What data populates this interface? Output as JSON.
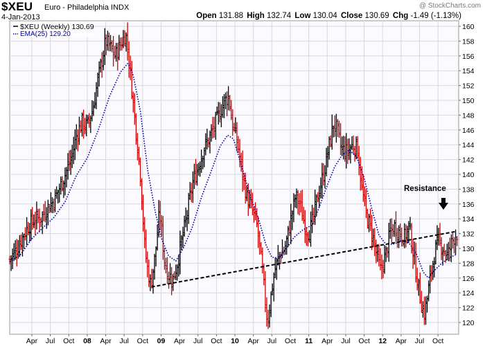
{
  "header": {
    "symbol": "$XEU",
    "name": "Euro - Philadelphia",
    "exchange": "INDX",
    "date": "4-Jan-2013",
    "brand": "@ StockCharts.com",
    "open_label": "Open",
    "open": "131.88",
    "high_label": "High",
    "high": "132.74",
    "low_label": "Low",
    "low": "130.04",
    "close_label": "Close",
    "close": "130.69",
    "chg_label": "Chg",
    "chg": "-1.49 (-1.13%)"
  },
  "legend": {
    "price_label": "$XEU (Weekly) 130.69",
    "ema_label": "EMA(25) 129.20"
  },
  "annotation": {
    "text": "Resistance"
  },
  "colors": {
    "up_bar": "#000000",
    "down_bar": "#cc0000",
    "ema": "#0000aa",
    "trendline": "#000000",
    "grid": "#d8d8e0"
  },
  "chart_data": {
    "type": "line",
    "title": "$XEU Euro - Philadelphia INDX",
    "series": [
      {
        "name": "$XEU (Weekly)",
        "style": "ohlc-bars"
      },
      {
        "name": "EMA(25)",
        "style": "dotted"
      }
    ],
    "ylim": [
      119,
      161
    ],
    "y_ticks": [
      120,
      122,
      124,
      126,
      128,
      130,
      132,
      134,
      136,
      138,
      140,
      142,
      144,
      146,
      148,
      150,
      152,
      154,
      156,
      158,
      160
    ],
    "x_ticks": [
      {
        "label": "Apr",
        "t": 2007.25
      },
      {
        "label": "Jul",
        "t": 2007.5
      },
      {
        "label": "Oct",
        "t": 2007.75
      },
      {
        "label": "08",
        "t": 2008.0,
        "bold": true
      },
      {
        "label": "Apr",
        "t": 2008.25
      },
      {
        "label": "Jul",
        "t": 2008.5
      },
      {
        "label": "Oct",
        "t": 2008.75
      },
      {
        "label": "09",
        "t": 2009.0,
        "bold": true
      },
      {
        "label": "Apr",
        "t": 2009.25
      },
      {
        "label": "Jul",
        "t": 2009.5
      },
      {
        "label": "Oct",
        "t": 2009.75
      },
      {
        "label": "10",
        "t": 2010.0,
        "bold": true
      },
      {
        "label": "Apr",
        "t": 2010.25
      },
      {
        "label": "Jul",
        "t": 2010.5
      },
      {
        "label": "Oct",
        "t": 2010.75
      },
      {
        "label": "11",
        "t": 2011.0,
        "bold": true
      },
      {
        "label": "Apr",
        "t": 2011.25
      },
      {
        "label": "Jul",
        "t": 2011.5
      },
      {
        "label": "Oct",
        "t": 2011.75
      },
      {
        "label": "12",
        "t": 2012.0,
        "bold": true
      },
      {
        "label": "Apr",
        "t": 2012.25
      },
      {
        "label": "Jul",
        "t": 2012.5
      },
      {
        "label": "Oct",
        "t": 2012.75
      }
    ],
    "x_range": [
      2006.95,
      2013.03
    ],
    "price_path": [
      [
        2006.95,
        128.5
      ],
      [
        2007.05,
        130
      ],
      [
        2007.12,
        131.5
      ],
      [
        2007.2,
        133
      ],
      [
        2007.3,
        134
      ],
      [
        2007.38,
        134.2
      ],
      [
        2007.46,
        135.5
      ],
      [
        2007.55,
        136.5
      ],
      [
        2007.62,
        138
      ],
      [
        2007.7,
        140
      ],
      [
        2007.78,
        142
      ],
      [
        2007.86,
        145.5
      ],
      [
        2007.93,
        147
      ],
      [
        2008.0,
        146.5
      ],
      [
        2008.08,
        149
      ],
      [
        2008.13,
        152
      ],
      [
        2008.2,
        155.5
      ],
      [
        2008.25,
        158
      ],
      [
        2008.32,
        157
      ],
      [
        2008.38,
        156
      ],
      [
        2008.45,
        157.5
      ],
      [
        2008.52,
        159
      ],
      [
        2008.56,
        156
      ],
      [
        2008.62,
        150
      ],
      [
        2008.67,
        145
      ],
      [
        2008.72,
        140
      ],
      [
        2008.78,
        130
      ],
      [
        2008.82,
        127
      ],
      [
        2008.86,
        125
      ],
      [
        2008.92,
        129
      ],
      [
        2008.98,
        135
      ],
      [
        2009.05,
        128
      ],
      [
        2009.1,
        126.5
      ],
      [
        2009.16,
        125.8
      ],
      [
        2009.22,
        128
      ],
      [
        2009.28,
        131
      ],
      [
        2009.36,
        135
      ],
      [
        2009.42,
        138.5
      ],
      [
        2009.5,
        141
      ],
      [
        2009.58,
        143.5
      ],
      [
        2009.66,
        145
      ],
      [
        2009.74,
        147
      ],
      [
        2009.8,
        148.5
      ],
      [
        2009.86,
        150
      ],
      [
        2009.92,
        150.5
      ],
      [
        2009.96,
        147
      ],
      [
        2010.04,
        144
      ],
      [
        2010.1,
        140
      ],
      [
        2010.16,
        137
      ],
      [
        2010.24,
        135
      ],
      [
        2010.3,
        133
      ],
      [
        2010.36,
        128
      ],
      [
        2010.4,
        124
      ],
      [
        2010.44,
        120
      ],
      [
        2010.48,
        123
      ],
      [
        2010.54,
        127
      ],
      [
        2010.6,
        129
      ],
      [
        2010.68,
        130
      ],
      [
        2010.76,
        134
      ],
      [
        2010.82,
        137
      ],
      [
        2010.88,
        136
      ],
      [
        2010.95,
        133
      ],
      [
        2011.0,
        132
      ],
      [
        2011.06,
        134
      ],
      [
        2011.12,
        137
      ],
      [
        2011.2,
        140
      ],
      [
        2011.28,
        144
      ],
      [
        2011.34,
        147
      ],
      [
        2011.38,
        146
      ],
      [
        2011.44,
        143.5
      ],
      [
        2011.52,
        143
      ],
      [
        2011.6,
        144
      ],
      [
        2011.66,
        143.5
      ],
      [
        2011.72,
        138
      ],
      [
        2011.78,
        134.5
      ],
      [
        2011.86,
        132
      ],
      [
        2011.92,
        129
      ],
      [
        2011.97,
        127
      ],
      [
        2012.04,
        129
      ],
      [
        2012.1,
        132
      ],
      [
        2012.16,
        133
      ],
      [
        2012.24,
        132
      ],
      [
        2012.3,
        131.5
      ],
      [
        2012.36,
        133
      ],
      [
        2012.42,
        129
      ],
      [
        2012.48,
        125
      ],
      [
        2012.52,
        123
      ],
      [
        2012.56,
        121
      ],
      [
        2012.6,
        123
      ],
      [
        2012.66,
        127
      ],
      [
        2012.72,
        130
      ],
      [
        2012.76,
        131
      ],
      [
        2012.82,
        130
      ],
      [
        2012.88,
        129
      ],
      [
        2012.94,
        131
      ],
      [
        2013.0,
        132
      ]
    ],
    "ema_path": [
      [
        2006.95,
        128.2
      ],
      [
        2007.1,
        129.2
      ],
      [
        2007.25,
        131.3
      ],
      [
        2007.4,
        132.8
      ],
      [
        2007.55,
        134.2
      ],
      [
        2007.7,
        136.3
      ],
      [
        2007.85,
        139.8
      ],
      [
        2008.0,
        142.2
      ],
      [
        2008.15,
        146.0
      ],
      [
        2008.3,
        150.5
      ],
      [
        2008.45,
        153.8
      ],
      [
        2008.55,
        155.0
      ],
      [
        2008.62,
        153.5
      ],
      [
        2008.72,
        148.5
      ],
      [
        2008.82,
        140.5
      ],
      [
        2008.92,
        135.0
      ],
      [
        2009.0,
        131.5
      ],
      [
        2009.1,
        129.0
      ],
      [
        2009.2,
        128.3
      ],
      [
        2009.3,
        130.0
      ],
      [
        2009.42,
        132.8
      ],
      [
        2009.55,
        137.0
      ],
      [
        2009.7,
        141.0
      ],
      [
        2009.8,
        143.8
      ],
      [
        2009.9,
        145.3
      ],
      [
        2009.98,
        144.8
      ],
      [
        2010.1,
        140.8
      ],
      [
        2010.2,
        137.3
      ],
      [
        2010.32,
        134.0
      ],
      [
        2010.42,
        130.5
      ],
      [
        2010.5,
        128.8
      ],
      [
        2010.6,
        128.7
      ],
      [
        2010.7,
        130.0
      ],
      [
        2010.8,
        131.5
      ],
      [
        2010.92,
        132.5
      ],
      [
        2011.05,
        133.2
      ],
      [
        2011.15,
        135.8
      ],
      [
        2011.25,
        138.5
      ],
      [
        2011.35,
        141.0
      ],
      [
        2011.45,
        142.6
      ],
      [
        2011.55,
        143.3
      ],
      [
        2011.65,
        142.3
      ],
      [
        2011.75,
        139.5
      ],
      [
        2011.85,
        135.5
      ],
      [
        2011.95,
        131.8
      ],
      [
        2012.05,
        130.5
      ],
      [
        2012.15,
        130.6
      ],
      [
        2012.25,
        131.0
      ],
      [
        2012.35,
        130.8
      ],
      [
        2012.45,
        129.5
      ],
      [
        2012.55,
        126.8
      ],
      [
        2012.62,
        126.0
      ],
      [
        2012.7,
        127.0
      ],
      [
        2012.8,
        128.0
      ],
      [
        2012.9,
        128.7
      ],
      [
        2013.0,
        129.2
      ]
    ],
    "trendline": [
      [
        2008.87,
        124.8
      ],
      [
        2013.0,
        132.3
      ]
    ],
    "annotation_point": [
      2012.86,
      134.0
    ]
  }
}
